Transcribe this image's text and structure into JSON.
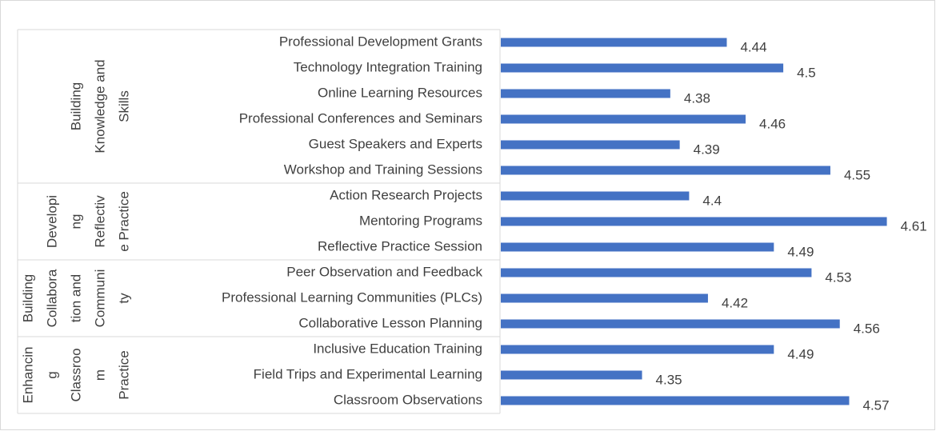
{
  "chart_data": {
    "type": "bar",
    "orientation": "horizontal",
    "color": "#4472c4",
    "xlim": [
      4.2,
      4.65
    ],
    "groups": [
      {
        "label_lines": [
          "Building",
          "Knowledge and",
          "Skills"
        ],
        "categories": [
          "Professional Development Grants",
          "Technology Integration Training",
          "Online Learning Resources",
          "Professional Conferences and Seminars",
          "Guest Speakers and Experts",
          "Workshop and Training Sessions"
        ],
        "values": [
          4.44,
          4.5,
          4.38,
          4.46,
          4.39,
          4.55
        ]
      },
      {
        "label_lines": [
          "Developi",
          "ng",
          "Reflectiv",
          "e Practice"
        ],
        "categories": [
          "Action Research Projects",
          "Mentoring Programs",
          "Reflective Practice Session"
        ],
        "values": [
          4.4,
          4.61,
          4.49
        ]
      },
      {
        "label_lines": [
          "Building",
          "Collabora",
          "tion and",
          "Communi",
          "ty"
        ],
        "categories": [
          "Peer Observation and Feedback",
          "Professional Learning Communities (PLCs)",
          "Collaborative Lesson Planning"
        ],
        "values": [
          4.53,
          4.42,
          4.56
        ]
      },
      {
        "label_lines": [
          "Enhancin",
          "g",
          "Classroo",
          "m",
          "Practice"
        ],
        "categories": [
          "Inclusive Education Training ",
          "Field Trips and Experimental Learning",
          "Classroom Observations"
        ],
        "values": [
          4.49,
          4.35,
          4.57
        ]
      }
    ]
  }
}
